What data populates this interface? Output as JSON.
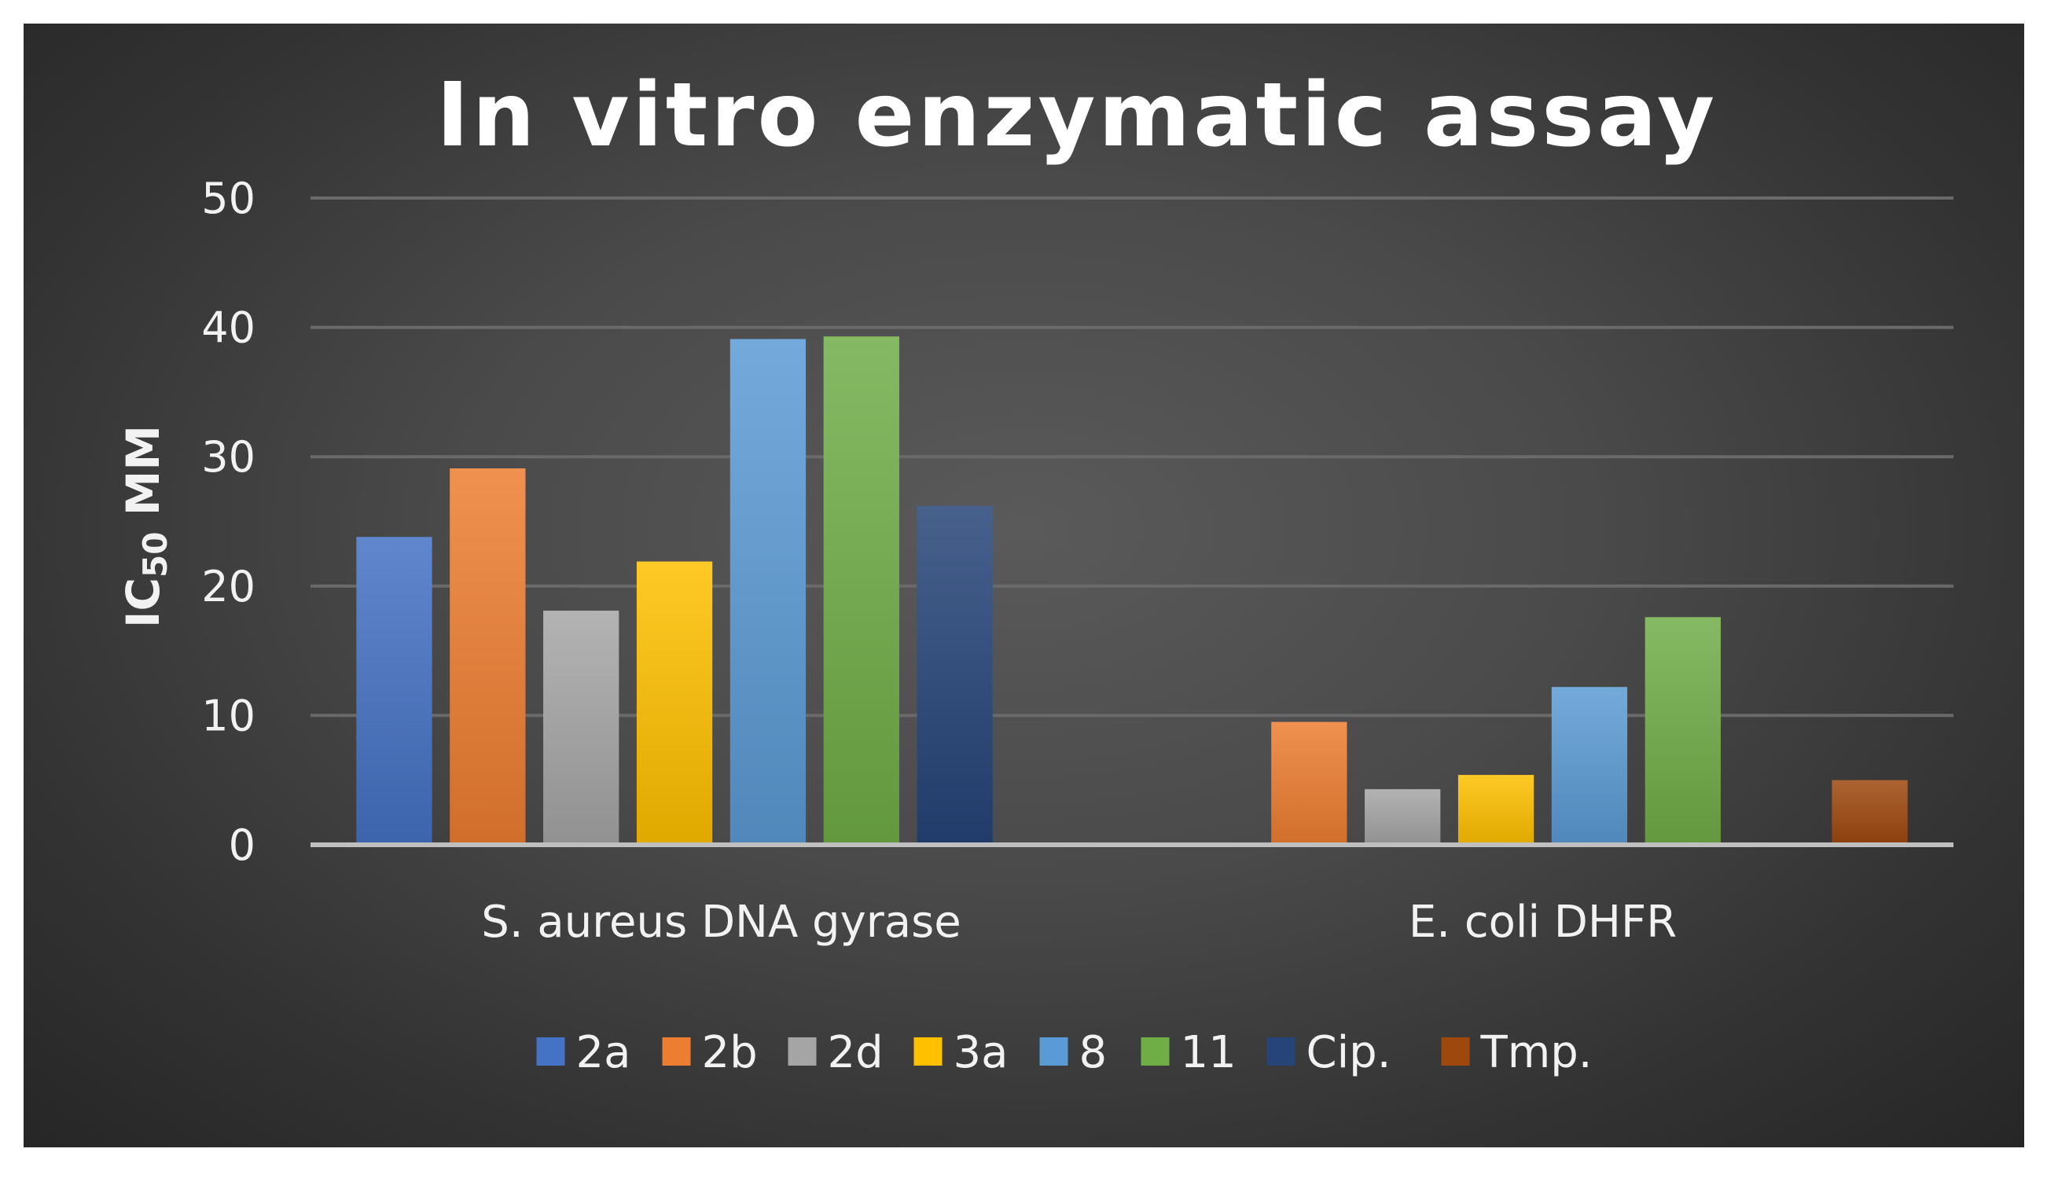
{
  "chart_data": {
    "type": "bar",
    "title": "In vitro enzymatic assay",
    "ylabel": "IC50 MM",
    "ylim": [
      0,
      50
    ],
    "yticks": [
      "0",
      "10",
      "20",
      "30",
      "40",
      "50"
    ],
    "grid": true,
    "legend_position": "bottom",
    "categories": [
      "S. aureus DNA gyrase",
      "E. coli DHFR"
    ],
    "series": [
      {
        "name": "2a",
        "color": "#4472C4",
        "values": [
          23.8,
          null
        ]
      },
      {
        "name": "2b",
        "color": "#ED7D31",
        "values": [
          29.1,
          9.5
        ]
      },
      {
        "name": "2d",
        "color": "#A5A5A5",
        "values": [
          18.1,
          4.3
        ]
      },
      {
        "name": "3a",
        "color": "#FFC000",
        "values": [
          21.9,
          5.4
        ]
      },
      {
        "name": "8",
        "color": "#5B9BD5",
        "values": [
          39.1,
          12.2
        ]
      },
      {
        "name": "11",
        "color": "#70AD47",
        "values": [
          39.3,
          17.6
        ]
      },
      {
        "name": "Cip.",
        "color": "#264478",
        "values": [
          26.2,
          null
        ]
      },
      {
        "name": "Tmp.",
        "color": "#9E480E",
        "values": [
          null,
          5.0
        ]
      }
    ]
  }
}
